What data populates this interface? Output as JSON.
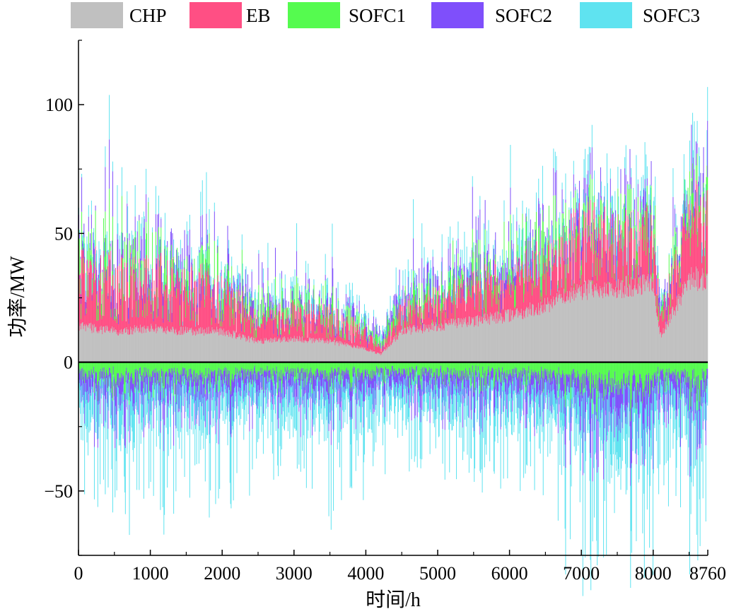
{
  "chart_data": {
    "type": "bar",
    "stacking": "stacked-diverging",
    "title": "",
    "xlabel": "时间/h",
    "ylabel": "功率/MW",
    "xlim": [
      0,
      8760
    ],
    "ylim": [
      -75,
      125
    ],
    "x_ticks": [
      0,
      1000,
      2000,
      3000,
      4000,
      5000,
      6000,
      7000,
      8000,
      8760
    ],
    "x_tick_labels": [
      "0",
      "1000",
      "2000",
      "3000",
      "4000",
      "5000",
      "6000",
      "7000",
      "8000",
      "8760"
    ],
    "y_ticks": [
      -50,
      0,
      50,
      100
    ],
    "y_tick_labels": [
      "−50",
      "0",
      "50",
      "100"
    ],
    "grid": false,
    "legend_position": "top",
    "zero_line": true,
    "series": [
      {
        "name": "CHP",
        "color": "#c0c0c0"
      },
      {
        "name": "EB",
        "color": "#ff4f84"
      },
      {
        "name": "SOFC1",
        "color": "#55fb4f"
      },
      {
        "name": "SOFC2",
        "color": "#7f4ffb"
      },
      {
        "name": "SOFC3",
        "color": "#5fe3f0"
      }
    ],
    "profile": {
      "knots_x": [
        0,
        500,
        1000,
        1500,
        2000,
        2500,
        3000,
        3500,
        4000,
        4200,
        4500,
        5000,
        5500,
        6000,
        6500,
        7000,
        7500,
        8000,
        8100,
        8500,
        8760
      ],
      "chp_mw": [
        14,
        12,
        13,
        12,
        12,
        8,
        9,
        8,
        5,
        3,
        12,
        14,
        16,
        18,
        22,
        28,
        29,
        30,
        10,
        32,
        33
      ],
      "eb_mw": [
        20,
        22,
        20,
        18,
        16,
        8,
        10,
        10,
        6,
        2,
        8,
        10,
        12,
        15,
        18,
        22,
        21,
        19,
        8,
        22,
        24
      ],
      "sofc1_mw": [
        12,
        13,
        13,
        12,
        11,
        8,
        8,
        8,
        6,
        4,
        10,
        11,
        12,
        13,
        13,
        12,
        12,
        11,
        6,
        13,
        13
      ],
      "sofc2_mw": [
        9,
        10,
        10,
        10,
        9,
        7,
        7,
        7,
        5,
        4,
        8,
        9,
        9,
        10,
        10,
        11,
        11,
        10,
        6,
        11,
        11
      ],
      "sofc3_mw": [
        8,
        9,
        9,
        8,
        8,
        6,
        6,
        6,
        5,
        3,
        7,
        8,
        8,
        9,
        9,
        10,
        10,
        9,
        5,
        10,
        10
      ],
      "neg_total_mw": [
        -22,
        -26,
        -24,
        -24,
        -24,
        -20,
        -22,
        -24,
        -22,
        -16,
        -18,
        -20,
        -20,
        -22,
        -24,
        -36,
        -38,
        -36,
        -22,
        -34,
        -32
      ],
      "neg_share": {
        "SOFC1": 0.22,
        "SOFC2": 0.3,
        "SOFC3": 0.48
      }
    },
    "bin_hours": 8
  }
}
